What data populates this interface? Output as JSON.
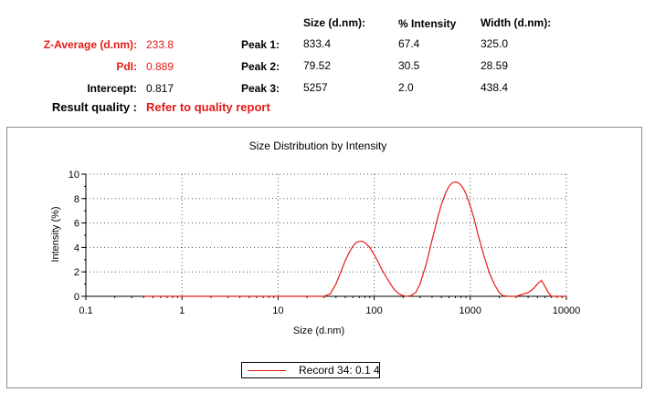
{
  "summary": {
    "z_average": {
      "label": "Z-Average (d.nm):",
      "value": "233.8"
    },
    "pdi": {
      "label": "PdI:",
      "value": "0.889"
    },
    "intercept": {
      "label": "Intercept:",
      "value": "0.817"
    },
    "result_quality": {
      "label": "Result quality :",
      "value": "Refer to quality report"
    }
  },
  "peaks_table": {
    "headers": [
      "Size (d.nm):",
      "% Intensity",
      "Width (d.nm):"
    ],
    "rows": [
      {
        "label": "Peak 1:",
        "size": "833.4",
        "intensity": "67.4",
        "width": "325.0"
      },
      {
        "label": "Peak 2:",
        "size": "79.52",
        "intensity": "30.5",
        "width": "28.59"
      },
      {
        "label": "Peak 3:",
        "size": "5257",
        "intensity": "2.0",
        "width": "438.4"
      }
    ]
  },
  "colors": {
    "accent_red": "#e41b17"
  },
  "chart_data": {
    "type": "line",
    "title": "Size Distribution by Intensity",
    "xlabel": "Size (d.nm)",
    "ylabel": "Intensity (%)",
    "x_scale": "log",
    "xlim": [
      0.1,
      10000
    ],
    "ylim": [
      0,
      10
    ],
    "x_ticks": [
      "0.1",
      "1",
      "10",
      "100",
      "1000",
      "10000"
    ],
    "y_ticks": [
      "0",
      "2",
      "4",
      "6",
      "8",
      "10"
    ],
    "grid": true,
    "legend_position": "bottom-center",
    "series": [
      {
        "name": "Record 34: 0.1 4",
        "color": "#e41b17",
        "x": [
          0.4,
          10,
          30,
          35,
          40,
          45,
          50,
          55,
          60,
          65,
          70,
          75,
          80,
          90,
          100,
          110,
          120,
          140,
          160,
          180,
          200,
          220,
          240,
          270,
          300,
          350,
          400,
          450,
          500,
          550,
          600,
          650,
          700,
          750,
          800,
          850,
          900,
          1000,
          1100,
          1200,
          1400,
          1600,
          1800,
          2000,
          2200,
          2500,
          3000,
          4000,
          4500,
          5000,
          5500,
          6000,
          6500,
          7000,
          8000,
          10000
        ],
        "y": [
          0,
          0,
          0,
          0.2,
          1.0,
          2.0,
          2.9,
          3.6,
          4.1,
          4.4,
          4.5,
          4.5,
          4.4,
          4.0,
          3.4,
          2.8,
          2.2,
          1.3,
          0.6,
          0.2,
          0.05,
          0,
          0.05,
          0.3,
          1.0,
          2.7,
          4.6,
          6.2,
          7.5,
          8.4,
          9.0,
          9.3,
          9.35,
          9.3,
          9.1,
          8.8,
          8.4,
          7.4,
          6.3,
          5.1,
          3.2,
          1.8,
          0.9,
          0.3,
          0.05,
          0,
          0,
          0.3,
          0.6,
          1.0,
          1.3,
          0.8,
          0.3,
          0,
          0,
          0
        ]
      }
    ]
  }
}
